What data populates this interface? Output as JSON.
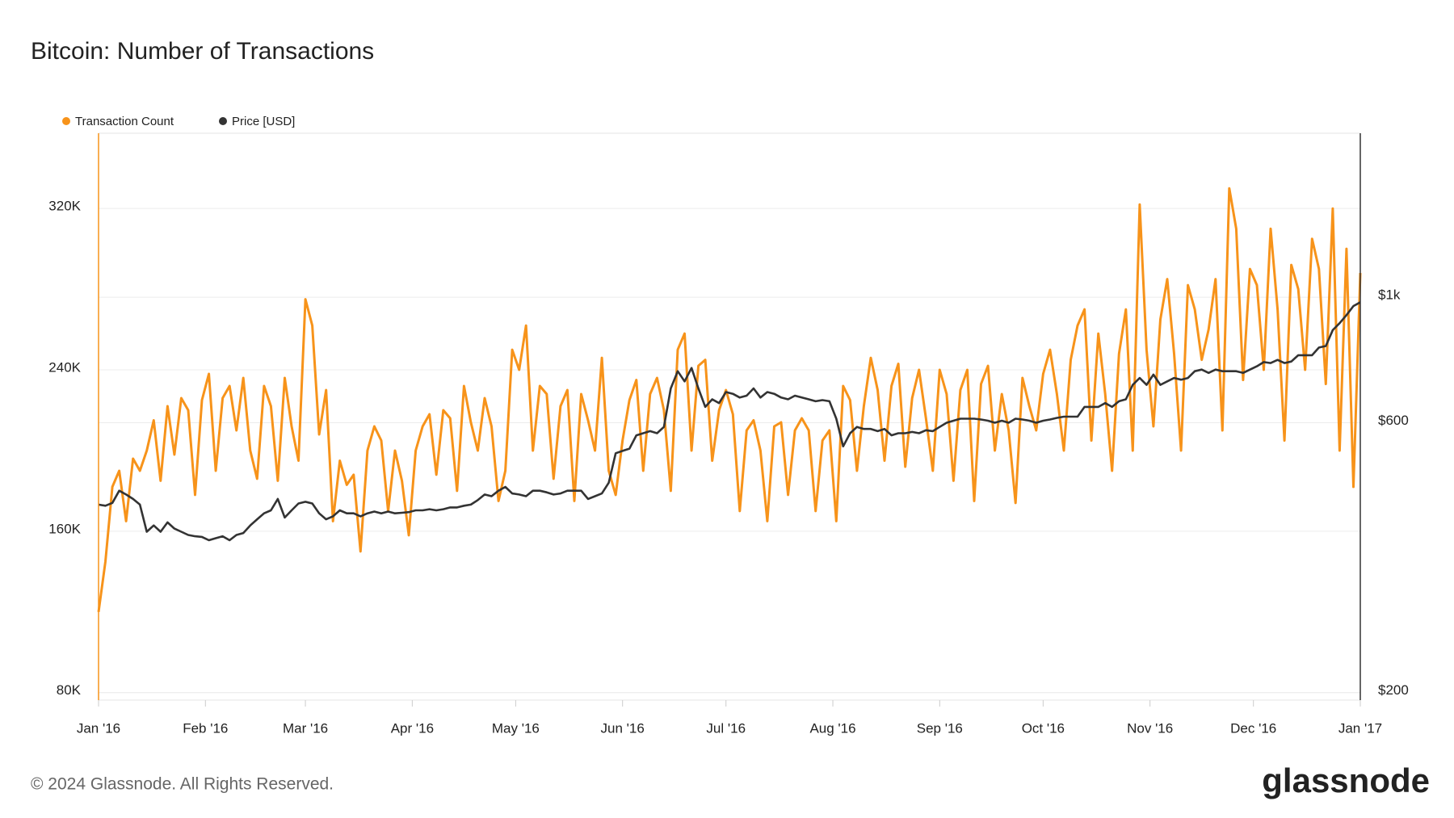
{
  "chart_data": {
    "type": "line",
    "title": "Bitcoin: Number of Transactions",
    "footer": "© 2024 Glassnode. All Rights Reserved.",
    "logo": "glassnode",
    "x": [
      0,
      2,
      4,
      6,
      8,
      10,
      12,
      14,
      16,
      18,
      20,
      22,
      24,
      26,
      28,
      30,
      32,
      34,
      36,
      38,
      40,
      42,
      44,
      46,
      48,
      50,
      52,
      54,
      56,
      58,
      60,
      62,
      64,
      66,
      68,
      70,
      72,
      74,
      76,
      78,
      80,
      82,
      84,
      86,
      88,
      90,
      92,
      94,
      96,
      98,
      100,
      102,
      104,
      106,
      108,
      110,
      112,
      114,
      116,
      118,
      120,
      122,
      124,
      126,
      128,
      130,
      132,
      134,
      136,
      138,
      140,
      142,
      144,
      146,
      148,
      150,
      152,
      154,
      156,
      158,
      160,
      162,
      164,
      166,
      168,
      170,
      172,
      174,
      176,
      178,
      180,
      182,
      184,
      186,
      188,
      190,
      192,
      194,
      196,
      198,
      200,
      202,
      204,
      206,
      208,
      210,
      212,
      214,
      216,
      218,
      220,
      222,
      224,
      226,
      228,
      230,
      232,
      234,
      236,
      238,
      240,
      242,
      244,
      246,
      248,
      250,
      252,
      254,
      256,
      258,
      260,
      262,
      264,
      266,
      268,
      270,
      272,
      274,
      276,
      278,
      280,
      282,
      284,
      286,
      288,
      290,
      292,
      294,
      296,
      298,
      300,
      302,
      304,
      306,
      308,
      310,
      312,
      314,
      316,
      318,
      320,
      322,
      324,
      326,
      328,
      330,
      332,
      334,
      336,
      338,
      340,
      342,
      344,
      346,
      348,
      350,
      352,
      354,
      356,
      358,
      360,
      362,
      364,
      366
    ],
    "xlim": [
      0,
      366
    ],
    "xticks": [
      {
        "value": 0,
        "label": "Jan '16"
      },
      {
        "value": 31,
        "label": "Feb '16"
      },
      {
        "value": 60,
        "label": "Mar '16"
      },
      {
        "value": 91,
        "label": "Apr '16"
      },
      {
        "value": 121,
        "label": "May '16"
      },
      {
        "value": 152,
        "label": "Jun '16"
      },
      {
        "value": 182,
        "label": "Jul '16"
      },
      {
        "value": 213,
        "label": "Aug '16"
      },
      {
        "value": 244,
        "label": "Sep '16"
      },
      {
        "value": 274,
        "label": "Oct '16"
      },
      {
        "value": 305,
        "label": "Nov '16"
      },
      {
        "value": 335,
        "label": "Dec '16"
      },
      {
        "value": 366,
        "label": "Jan '17"
      }
    ],
    "ylim": [
      76300,
      357300
    ],
    "yticks": [
      {
        "value": 80000,
        "label": "80K"
      },
      {
        "value": 160000,
        "label": "160K"
      },
      {
        "value": 240000,
        "label": "240K"
      },
      {
        "value": 320000,
        "label": "320K"
      }
    ],
    "y2lim": [
      194,
      1950
    ],
    "y2log": true,
    "y2ticks": [
      {
        "value": 200,
        "label": "$200"
      },
      {
        "value": 600,
        "label": "$600"
      },
      {
        "value": 1000,
        "label": "$1k"
      }
    ],
    "grid": true,
    "series": [
      {
        "name": "Transaction Count",
        "color": "#f7931a",
        "values": [
          120000,
          145000,
          182000,
          190000,
          165000,
          196000,
          190000,
          200000,
          215000,
          185000,
          222000,
          198000,
          226000,
          220000,
          178000,
          225000,
          238000,
          190000,
          226000,
          232000,
          210000,
          236000,
          200000,
          186000,
          232000,
          222000,
          185000,
          236000,
          212000,
          195000,
          275000,
          262000,
          208000,
          230000,
          165000,
          195000,
          183000,
          188000,
          150000,
          200000,
          212000,
          205000,
          170000,
          200000,
          185000,
          158000,
          200000,
          212000,
          218000,
          188000,
          220000,
          216000,
          180000,
          232000,
          214000,
          200000,
          226000,
          212000,
          175000,
          190000,
          250000,
          240000,
          262000,
          200000,
          232000,
          228000,
          186000,
          222000,
          230000,
          175000,
          228000,
          215000,
          200000,
          246000,
          190000,
          178000,
          205000,
          225000,
          235000,
          190000,
          228000,
          236000,
          220000,
          180000,
          250000,
          258000,
          200000,
          242000,
          245000,
          195000,
          220000,
          230000,
          218000,
          170000,
          210000,
          215000,
          200000,
          165000,
          212000,
          214000,
          178000,
          210000,
          216000,
          210000,
          170000,
          205000,
          210000,
          165000,
          232000,
          225000,
          190000,
          222000,
          246000,
          230000,
          195000,
          232000,
          243000,
          192000,
          226000,
          240000,
          216000,
          190000,
          240000,
          228000,
          185000,
          230000,
          240000,
          175000,
          233000,
          242000,
          200000,
          228000,
          210000,
          174000,
          236000,
          222000,
          210000,
          238000,
          250000,
          228000,
          200000,
          245000,
          262000,
          270000,
          205000,
          258000,
          228000,
          190000,
          248000,
          270000,
          200000,
          322000,
          250000,
          212000,
          265000,
          285000,
          248000,
          200000,
          282000,
          270000,
          245000,
          260000,
          285000,
          210000,
          330000,
          310000,
          235000,
          290000,
          282000,
          240000,
          310000,
          270000,
          205000,
          292000,
          280000,
          240000,
          305000,
          290000,
          233000,
          320000,
          200000,
          300000,
          182000,
          288000
        ]
      },
      {
        "name": "Price [USD]",
        "color": "#333333",
        "axis": "y2",
        "values": [
          430,
          428,
          433,
          455,
          448,
          440,
          430,
          385,
          395,
          385,
          400,
          390,
          385,
          380,
          378,
          377,
          372,
          375,
          378,
          372,
          380,
          383,
          395,
          405,
          415,
          420,
          440,
          408,
          420,
          432,
          435,
          432,
          415,
          405,
          410,
          420,
          415,
          415,
          410,
          415,
          418,
          415,
          418,
          415,
          416,
          417,
          420,
          420,
          422,
          420,
          422,
          425,
          425,
          428,
          430,
          438,
          448,
          445,
          455,
          462,
          450,
          448,
          445,
          455,
          455,
          452,
          448,
          450,
          455,
          455,
          455,
          440,
          445,
          450,
          470,
          530,
          535,
          540,
          570,
          575,
          580,
          575,
          590,
          690,
          740,
          710,
          750,
          690,
          640,
          660,
          650,
          680,
          675,
          665,
          670,
          690,
          665,
          680,
          675,
          665,
          660,
          670,
          665,
          660,
          655,
          658,
          655,
          610,
          545,
          575,
          590,
          585,
          585,
          580,
          585,
          570,
          575,
          575,
          578,
          575,
          582,
          580,
          590,
          600,
          605,
          610,
          610,
          610,
          608,
          605,
          600,
          605,
          600,
          610,
          608,
          605,
          600,
          605,
          608,
          612,
          615,
          615,
          615,
          640,
          640,
          640,
          650,
          640,
          655,
          660,
          700,
          720,
          700,
          730,
          700,
          710,
          720,
          715,
          720,
          740,
          745,
          735,
          745,
          740,
          740,
          740,
          735,
          745,
          755,
          768,
          765,
          775,
          765,
          770,
          790,
          790,
          790,
          815,
          820,
          875,
          900,
          930,
          965,
          980
        ]
      }
    ]
  }
}
